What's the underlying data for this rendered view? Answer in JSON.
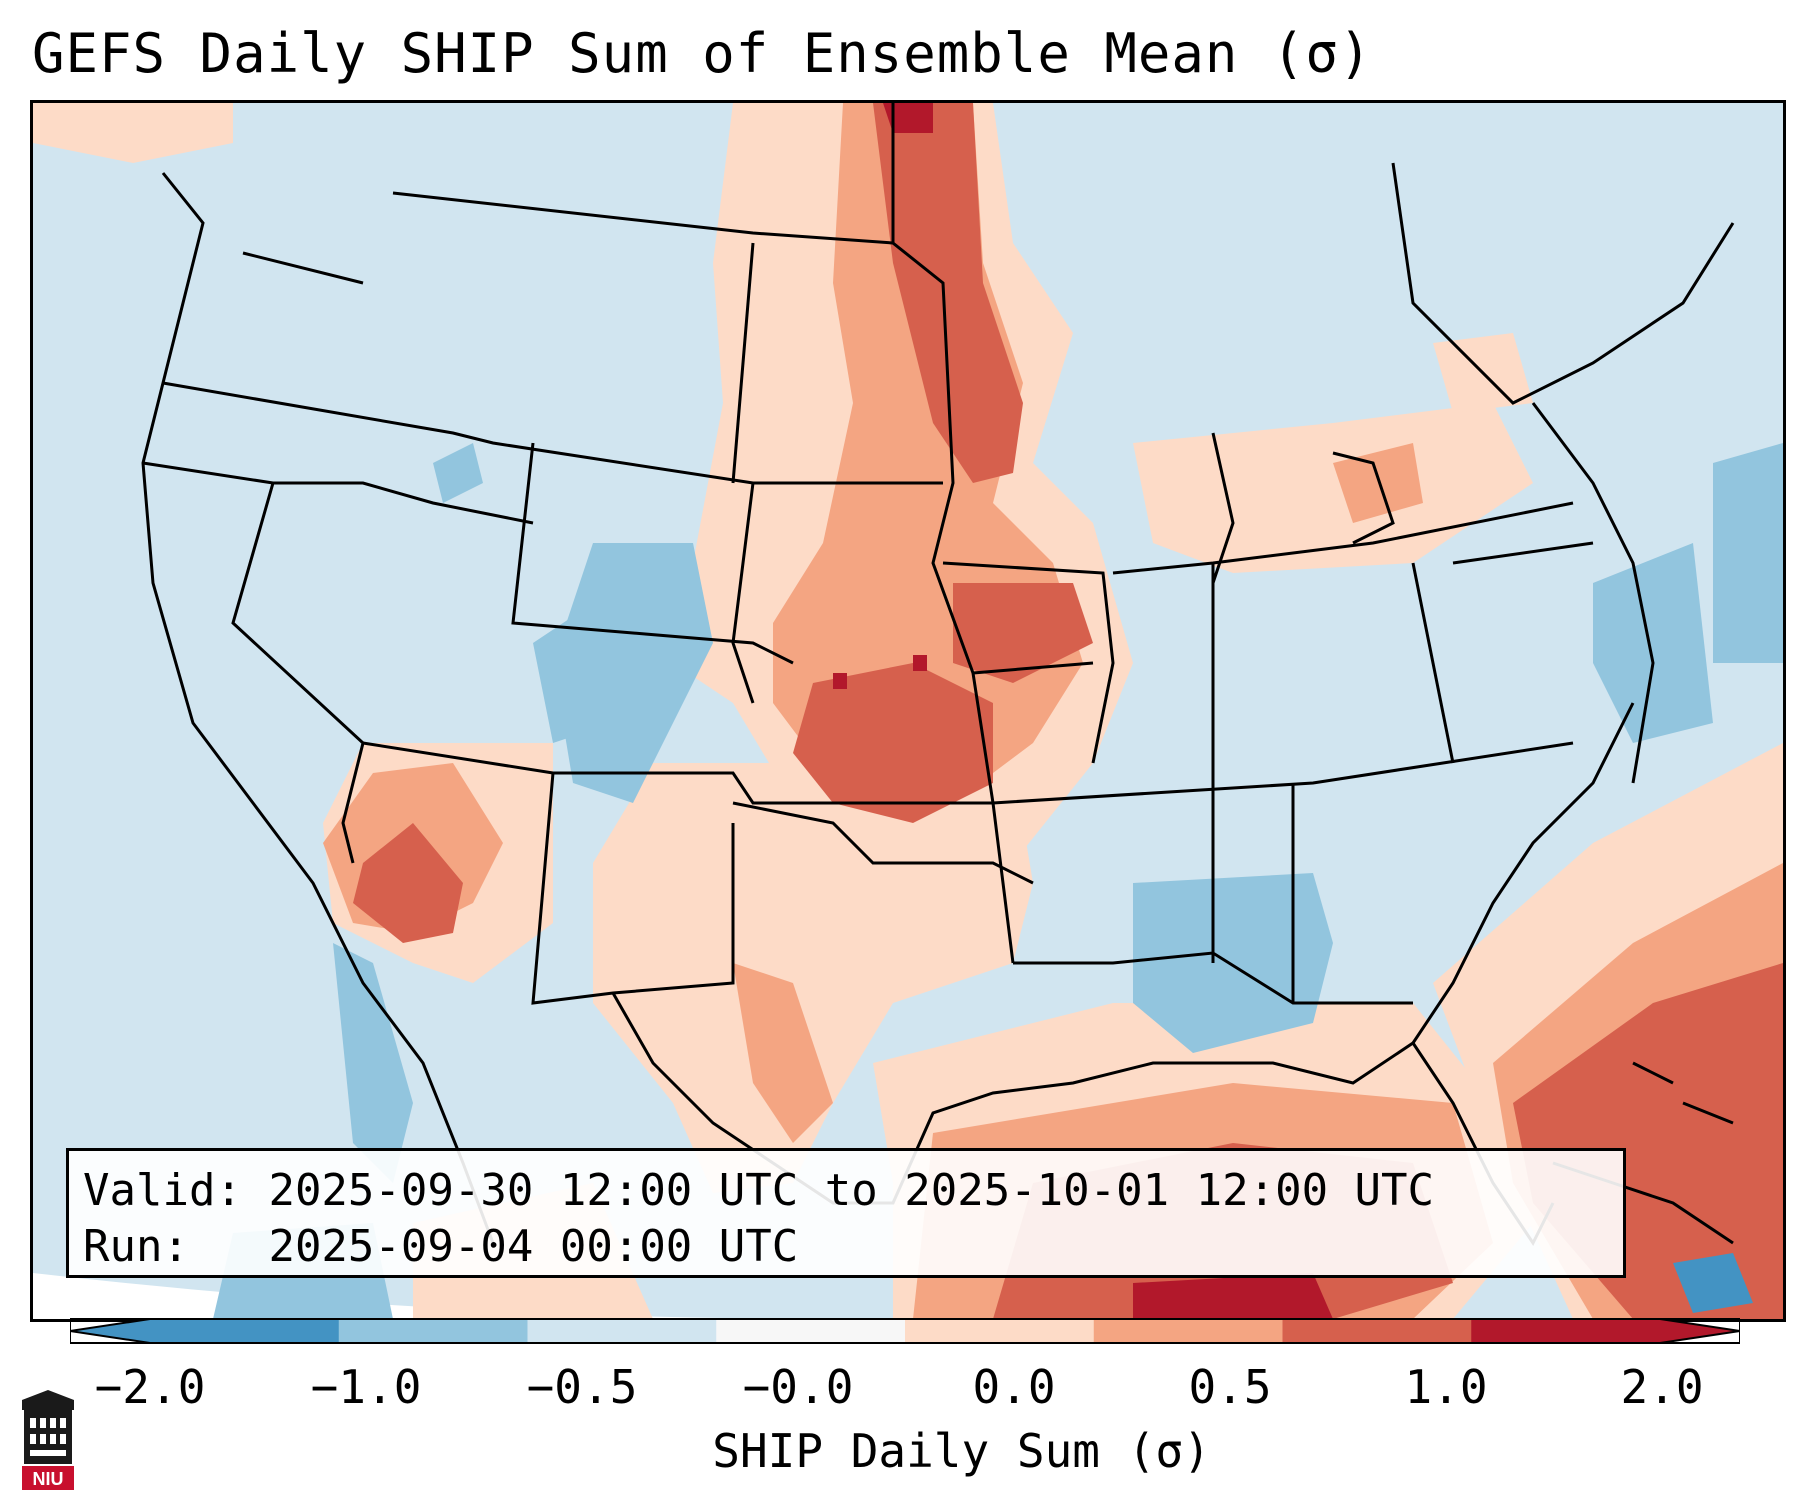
{
  "title": "GEFS Daily SHIP Sum of Ensemble Mean (σ)",
  "info": {
    "valid_label": "Valid:",
    "valid_value": "2025-09-30 12:00 UTC to 2025-10-01 12:00 UTC",
    "run_label": "Run:",
    "run_value": "2025-09-04 00:00 UTC"
  },
  "colorbar": {
    "label": "SHIP Daily Sum (σ)",
    "ticks": [
      "−2.0",
      "−1.0",
      "−0.5",
      "−0.0",
      "0.0",
      "0.5",
      "1.0",
      "2.0"
    ],
    "colors": [
      "#4393c3",
      "#92c5de",
      "#d1e5f0",
      "#f7f7f7",
      "#fddbc7",
      "#f4a582",
      "#d6604d",
      "#b2182b"
    ]
  },
  "logo": {
    "text": "NIU",
    "icon": "university-tower-icon"
  }
}
